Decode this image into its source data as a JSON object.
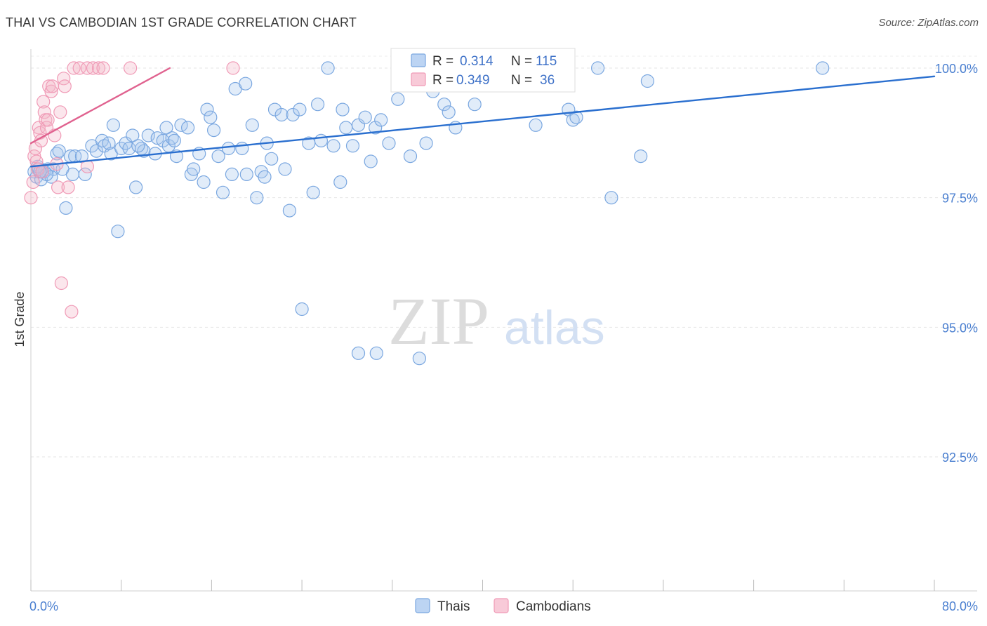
{
  "chart_data": {
    "type": "scatter",
    "title": "THAI VS CAMBODIAN 1ST GRADE CORRELATION CHART",
    "source": "Source: ZipAtlas.com",
    "xlabel": "",
    "ylabel": "1st Grade",
    "xlim": [
      0,
      80
    ],
    "ylim": [
      90.0,
      100.5
    ],
    "x_tick_labels": [
      "0.0%",
      "80.0%"
    ],
    "y_ticks": [
      {
        "value": 100.0,
        "label": "100.0%"
      },
      {
        "value": 97.5,
        "label": "97.5%"
      },
      {
        "value": 95.0,
        "label": "95.0%"
      },
      {
        "value": 92.5,
        "label": "92.5%"
      }
    ],
    "watermark": {
      "zip": "ZIP",
      "atlas": "atlas"
    },
    "legend": {
      "stats": [
        {
          "r_label": "R =",
          "r_value": "0.314",
          "n_label": "N =",
          "n_value": "115",
          "color": "#a9c8ef"
        },
        {
          "r_label": "R =",
          "r_value": "0.349",
          "n_label": "N =",
          "n_value": "36",
          "color": "#f4b8c9"
        }
      ],
      "series": [
        {
          "name": "Thais",
          "color": "#a9c8ef"
        },
        {
          "name": "Cambodians",
          "color": "#f4b8c9"
        }
      ]
    },
    "series": [
      {
        "name": "Thais",
        "color": "#7aa7e0",
        "trend_color": "#2a6fcf",
        "trend": {
          "x": [
            0,
            80
          ],
          "y": [
            98.1,
            99.84
          ]
        },
        "points": [
          [
            0.3,
            98.0
          ],
          [
            0.5,
            97.9
          ],
          [
            0.7,
            98.05
          ],
          [
            0.9,
            97.85
          ],
          [
            1.2,
            98.0
          ],
          [
            1.5,
            98.05
          ],
          [
            2.0,
            98.05
          ],
          [
            2.8,
            98.05
          ],
          [
            2.3,
            98.35
          ],
          [
            3.5,
            98.3
          ],
          [
            3.9,
            98.3
          ],
          [
            4.5,
            98.3
          ],
          [
            3.1,
            97.3
          ],
          [
            4.8,
            97.95
          ],
          [
            5.4,
            98.5
          ],
          [
            5.8,
            98.4
          ],
          [
            6.3,
            98.6
          ],
          [
            6.5,
            98.5
          ],
          [
            7.1,
            98.35
          ],
          [
            7.3,
            98.9
          ],
          [
            8.0,
            98.45
          ],
          [
            8.4,
            98.55
          ],
          [
            8.7,
            98.45
          ],
          [
            9.0,
            98.7
          ],
          [
            9.3,
            97.7
          ],
          [
            9.8,
            98.45
          ],
          [
            10.0,
            98.4
          ],
          [
            10.4,
            98.7
          ],
          [
            11.0,
            98.35
          ],
          [
            11.2,
            98.65
          ],
          [
            11.7,
            98.6
          ],
          [
            12.0,
            98.85
          ],
          [
            12.2,
            98.5
          ],
          [
            12.5,
            98.65
          ],
          [
            12.9,
            98.3
          ],
          [
            13.3,
            98.9
          ],
          [
            13.9,
            98.85
          ],
          [
            14.2,
            97.95
          ],
          [
            14.4,
            98.05
          ],
          [
            14.9,
            98.35
          ],
          [
            15.3,
            97.8
          ],
          [
            15.6,
            99.2
          ],
          [
            15.9,
            99.05
          ],
          [
            16.2,
            98.8
          ],
          [
            16.6,
            98.3
          ],
          [
            17.0,
            97.6
          ],
          [
            17.5,
            98.45
          ],
          [
            17.8,
            97.95
          ],
          [
            18.1,
            99.6
          ],
          [
            18.7,
            98.45
          ],
          [
            19.1,
            97.95
          ],
          [
            19.6,
            98.9
          ],
          [
            20.0,
            97.5
          ],
          [
            20.4,
            98.0
          ],
          [
            20.7,
            97.9
          ],
          [
            20.9,
            98.55
          ],
          [
            21.3,
            98.25
          ],
          [
            21.6,
            99.2
          ],
          [
            22.2,
            99.1
          ],
          [
            22.5,
            98.05
          ],
          [
            22.9,
            97.25
          ],
          [
            23.2,
            99.1
          ],
          [
            23.8,
            99.2
          ],
          [
            24.0,
            95.35
          ],
          [
            24.6,
            98.55
          ],
          [
            25.0,
            97.6
          ],
          [
            25.4,
            99.3
          ],
          [
            25.7,
            98.6
          ],
          [
            26.3,
            100.0
          ],
          [
            26.8,
            98.5
          ],
          [
            27.4,
            97.8
          ],
          [
            27.6,
            99.2
          ],
          [
            27.9,
            98.85
          ],
          [
            28.5,
            98.5
          ],
          [
            29.0,
            98.9
          ],
          [
            29.6,
            99.05
          ],
          [
            30.1,
            98.2
          ],
          [
            30.5,
            98.85
          ],
          [
            31.0,
            99.0
          ],
          [
            31.7,
            98.55
          ],
          [
            32.5,
            99.4
          ],
          [
            33.1,
            100.0
          ],
          [
            33.6,
            98.3
          ],
          [
            34.0,
            99.75
          ],
          [
            35.0,
            98.55
          ],
          [
            35.6,
            99.55
          ],
          [
            36.6,
            99.3
          ],
          [
            37.0,
            99.15
          ],
          [
            37.6,
            98.85
          ],
          [
            38.5,
            99.8
          ],
          [
            39.3,
            99.3
          ],
          [
            40.8,
            100.0
          ],
          [
            42.7,
            100.0
          ],
          [
            44.7,
            98.9
          ],
          [
            47.6,
            99.2
          ],
          [
            48.0,
            99.0
          ],
          [
            48.3,
            99.05
          ],
          [
            50.2,
            100.0
          ],
          [
            51.4,
            97.5
          ],
          [
            54.0,
            98.3
          ],
          [
            54.6,
            99.75
          ],
          [
            70.1,
            100.0
          ],
          [
            29.0,
            94.5
          ],
          [
            30.6,
            94.5
          ],
          [
            34.4,
            94.4
          ],
          [
            7.7,
            96.85
          ],
          [
            3.7,
            97.95
          ],
          [
            1.0,
            98.0
          ],
          [
            1.8,
            97.9
          ],
          [
            0.6,
            98.1
          ],
          [
            1.4,
            97.95
          ],
          [
            0.8,
            98.0
          ],
          [
            2.5,
            98.4
          ],
          [
            6.9,
            98.55
          ],
          [
            9.5,
            98.5
          ],
          [
            12.7,
            98.6
          ],
          [
            19.0,
            99.7
          ]
        ]
      },
      {
        "name": "Cambodians",
        "color": "#f09ab6",
        "trend_color": "#e0628f",
        "trend": {
          "x": [
            0,
            12.3
          ],
          "y": [
            98.55,
            100.0
          ]
        },
        "points": [
          [
            0.0,
            97.5
          ],
          [
            0.2,
            97.8
          ],
          [
            0.3,
            98.3
          ],
          [
            0.4,
            98.45
          ],
          [
            0.5,
            98.2
          ],
          [
            0.6,
            98.05
          ],
          [
            0.7,
            98.85
          ],
          [
            0.8,
            98.75
          ],
          [
            0.9,
            98.6
          ],
          [
            1.0,
            98.0
          ],
          [
            1.1,
            99.35
          ],
          [
            1.2,
            99.15
          ],
          [
            1.3,
            99.0
          ],
          [
            1.4,
            98.85
          ],
          [
            1.5,
            99.0
          ],
          [
            1.6,
            99.65
          ],
          [
            1.8,
            99.55
          ],
          [
            1.9,
            99.65
          ],
          [
            2.1,
            98.7
          ],
          [
            2.3,
            98.15
          ],
          [
            2.4,
            97.7
          ],
          [
            2.6,
            99.15
          ],
          [
            2.7,
            95.85
          ],
          [
            2.9,
            99.8
          ],
          [
            3.0,
            99.65
          ],
          [
            3.3,
            97.7
          ],
          [
            3.6,
            95.3
          ],
          [
            3.8,
            100.0
          ],
          [
            4.3,
            100.0
          ],
          [
            5.0,
            98.1
          ],
          [
            5.0,
            100.0
          ],
          [
            5.5,
            100.0
          ],
          [
            6.0,
            100.0
          ],
          [
            6.4,
            100.0
          ],
          [
            8.8,
            100.0
          ],
          [
            17.9,
            100.0
          ]
        ]
      }
    ]
  }
}
